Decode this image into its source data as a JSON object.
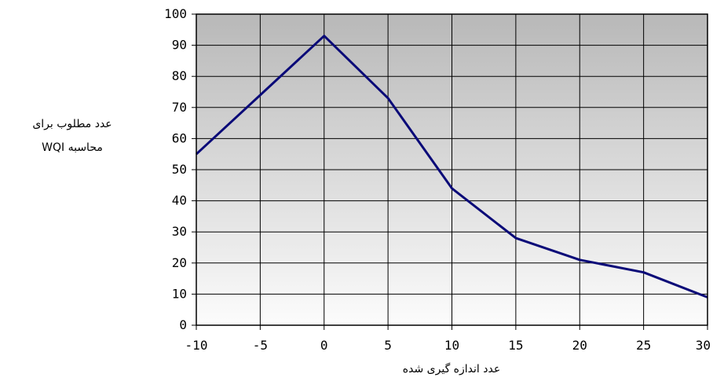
{
  "chart_data": {
    "type": "line",
    "x": [
      -10,
      -5,
      0,
      5,
      10,
      15,
      20,
      25,
      30
    ],
    "series": [
      {
        "values": [
          55,
          74,
          93,
          73,
          44,
          28,
          21,
          17,
          9
        ],
        "color": "#0a0a78"
      }
    ],
    "xlabel": "عدد اندازه گیری شده",
    "ylabel_lines": [
      "عدد مطلوب برای",
      "محاسبه WQI"
    ],
    "xlim": [
      -10,
      30
    ],
    "ylim": [
      0,
      100
    ],
    "xticks": [
      "-10",
      "-5",
      "0",
      "5",
      "10",
      "15",
      "20",
      "25",
      "30"
    ],
    "yticks": [
      "0",
      "10",
      "20",
      "30",
      "40",
      "50",
      "60",
      "70",
      "80",
      "90",
      "100"
    ],
    "grid": true,
    "plot_background": "gradient gray to white",
    "gridline_color": "#000000"
  }
}
